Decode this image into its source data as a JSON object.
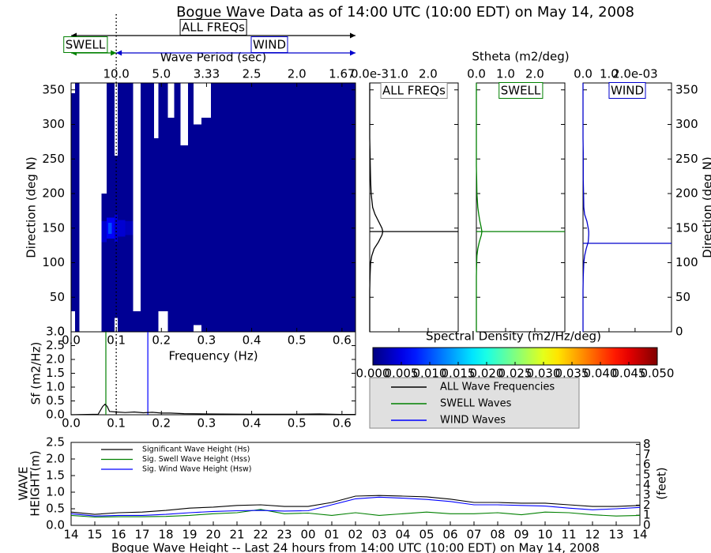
{
  "title": "Bogue Wave Data as of 14:00 UTC (10:00 EDT) on May 14, 2008",
  "chart_data": [
    {
      "type": "heatmap",
      "xlabel": "Frequency (Hz)",
      "ylabel": "Direction (deg N)",
      "top_xlabel": "Wave Period (sec)",
      "xlim": [
        0,
        0.63
      ],
      "ylim": [
        0,
        360
      ],
      "xticks": [
        {
          "value": 0,
          "label": "0.0"
        },
        0.1,
        0.2,
        0.3,
        0.4,
        0.5,
        0.6
      ],
      "yticks": [
        0,
        50,
        100,
        150,
        200,
        250,
        300,
        350
      ],
      "top_xticks": [
        {
          "value": 0.1,
          "label": "10.0"
        },
        {
          "value": 0.2,
          "label": "5.0"
        },
        {
          "value": 0.3,
          "label": "3.33"
        },
        {
          "value": 0.4,
          "label": "2.5"
        },
        {
          "value": 0.5,
          "label": "2.0"
        },
        {
          "value": 0.6,
          "label": "1.67"
        }
      ],
      "split_freq": 0.1,
      "annotations": {
        "all": "ALL FREQs",
        "swell": "SWELL",
        "wind": "WIND"
      },
      "cells": [
        {
          "f": [
            0,
            0.009
          ],
          "d": [
            30,
            345
          ],
          "v": 0.001
        },
        {
          "f": [
            0.009,
            0.018
          ],
          "d": [
            0,
            360
          ],
          "v": 0.001
        },
        {
          "f": [
            0.067,
            0.079
          ],
          "d": [
            0,
            200
          ],
          "v": 0.001
        },
        {
          "f": [
            0.079,
            0.096
          ],
          "d": [
            0,
            360
          ],
          "v": 0.001
        },
        {
          "f": [
            0.096,
            0.103
          ],
          "d": [
            20,
            255
          ],
          "v": 0.001
        },
        {
          "f": [
            0.103,
            0.137
          ],
          "d": [
            0,
            360
          ],
          "v": 0.001
        },
        {
          "f": [
            0.137,
            0.154
          ],
          "d": [
            0,
            30
          ],
          "v": 0.001
        },
        {
          "f": [
            0.154,
            0.184
          ],
          "d": [
            0,
            360
          ],
          "v": 0.001
        },
        {
          "f": [
            0.184,
            0.193
          ],
          "d": [
            0,
            280
          ],
          "v": 0.001
        },
        {
          "f": [
            0.193,
            0.214
          ],
          "d": [
            30,
            360
          ],
          "v": 0.001
        },
        {
          "f": [
            0.214,
            0.228
          ],
          "d": [
            0,
            310
          ],
          "v": 0.001
        },
        {
          "f": [
            0.228,
            0.242
          ],
          "d": [
            0,
            360
          ],
          "v": 0.001
        },
        {
          "f": [
            0.242,
            0.259
          ],
          "d": [
            0,
            270
          ],
          "v": 0.001
        },
        {
          "f": [
            0.259,
            0.271
          ],
          "d": [
            0,
            360
          ],
          "v": 0.001
        },
        {
          "f": [
            0.271,
            0.289
          ],
          "d": [
            10,
            300
          ],
          "v": 0.001
        },
        {
          "f": [
            0.289,
            0.31
          ],
          "d": [
            0,
            310
          ],
          "v": 0.001
        },
        {
          "f": [
            0.31,
            0.63
          ],
          "d": [
            0,
            360
          ],
          "v": 0.001
        },
        {
          "f": [
            0.067,
            0.079
          ],
          "d": [
            130,
            160
          ],
          "v": 0.004
        },
        {
          "f": [
            0.079,
            0.096
          ],
          "d": [
            135,
            165
          ],
          "v": 0.006
        },
        {
          "f": [
            0.082,
            0.09
          ],
          "d": [
            142,
            158
          ],
          "v": 0.01
        },
        {
          "f": [
            0.096,
            0.103
          ],
          "d": [
            130,
            170
          ],
          "v": 0.004
        },
        {
          "f": [
            0.103,
            0.12
          ],
          "d": [
            138,
            162
          ],
          "v": 0.004
        },
        {
          "f": [
            0.12,
            0.137
          ],
          "d": [
            140,
            160
          ],
          "v": 0.003
        }
      ],
      "colorbar": {
        "label": "Spectral Density (m2/Hz/deg)",
        "colormap": "jet",
        "clim": [
          0,
          0.05
        ],
        "ticks": [
          {
            "value": 0,
            "label": "0.000"
          },
          {
            "value": 0.005,
            "label": "0.005"
          },
          {
            "value": 0.01,
            "label": "0.010"
          },
          {
            "value": 0.015,
            "label": "0.015"
          },
          {
            "value": 0.02,
            "label": "0.020"
          },
          {
            "value": 0.025,
            "label": "0.025"
          },
          {
            "value": 0.03,
            "label": "0.030"
          },
          {
            "value": 0.035,
            "label": "0.035"
          },
          {
            "value": 0.04,
            "label": "0.040"
          },
          {
            "value": 0.045,
            "label": "0.045"
          },
          {
            "value": 0.05,
            "label": "0.050"
          }
        ]
      }
    },
    {
      "type": "line",
      "label": "ALL FREQs",
      "color": "#000000",
      "xlim": [
        0,
        3.03
      ],
      "ylim": [
        0,
        360
      ],
      "xticks": [
        {
          "value": 0,
          "label": "0.0e-3"
        },
        {
          "value": 1,
          "label": "1.0"
        },
        {
          "value": 2,
          "label": "2.0"
        }
      ],
      "yticks": [
        0,
        50,
        100,
        150,
        200,
        250,
        300,
        350
      ],
      "directions": [
        0,
        20,
        40,
        60,
        80,
        100,
        110,
        120,
        130,
        140,
        145,
        150,
        160,
        170,
        180,
        200,
        220,
        240,
        260,
        280,
        300,
        320,
        340,
        360
      ],
      "values": [
        0,
        0,
        0,
        0,
        0.01,
        0.03,
        0.07,
        0.15,
        0.3,
        0.42,
        0.45,
        0.42,
        0.3,
        0.18,
        0.1,
        0.05,
        0.03,
        0.02,
        0.01,
        0,
        0,
        0,
        0,
        0
      ],
      "peak_dir": 145
    },
    {
      "type": "line",
      "label": "SWELL",
      "color": "#008000",
      "xlabel": "Stheta (m2/deg)",
      "xlim": [
        0,
        3.03
      ],
      "ylim": [
        0,
        360
      ],
      "xticks": [
        {
          "value": 0,
          "label": "0.0"
        },
        {
          "value": 1,
          "label": "1.0"
        },
        {
          "value": 2,
          "label": "2.0"
        }
      ],
      "yticks": [
        0,
        50,
        100,
        150,
        200,
        250,
        300,
        350
      ],
      "directions": [
        0,
        20,
        40,
        60,
        80,
        100,
        110,
        120,
        130,
        140,
        145,
        150,
        160,
        170,
        180,
        200,
        220,
        240,
        260,
        280,
        300,
        320,
        340,
        360
      ],
      "values": [
        0,
        0,
        0,
        0,
        0,
        0.01,
        0.02,
        0.05,
        0.1,
        0.17,
        0.19,
        0.17,
        0.12,
        0.08,
        0.05,
        0.02,
        0.01,
        0,
        0,
        0,
        0,
        0,
        0,
        0
      ],
      "peak_dir": 145
    },
    {
      "type": "line",
      "label": "WIND",
      "color": "#0000cc",
      "ylabel": "Direction (deg N)",
      "xlim": [
        0,
        3.4
      ],
      "ylim": [
        0,
        360
      ],
      "xticks": [
        {
          "value": 0,
          "label": "0.0"
        },
        {
          "value": 1,
          "label": "1.0"
        },
        {
          "value": 2,
          "label": "2.0e-03"
        }
      ],
      "yticks": [
        0,
        50,
        100,
        150,
        200,
        250,
        300,
        350
      ],
      "directions": [
        0,
        20,
        40,
        60,
        80,
        100,
        110,
        120,
        130,
        140,
        145,
        150,
        160,
        170,
        180,
        200,
        220,
        240,
        260,
        280,
        300,
        320,
        340,
        360
      ],
      "values": [
        0,
        0,
        0,
        0,
        0.01,
        0.03,
        0.06,
        0.12,
        0.2,
        0.22,
        0.22,
        0.2,
        0.15,
        0.06,
        0.03,
        0.02,
        0.01,
        0.01,
        0.01,
        0,
        0,
        0,
        0,
        0
      ],
      "peak_dir": 128
    },
    {
      "type": "line",
      "ylabel": "Sf (m2/Hz)",
      "xlim": [
        0,
        0.63
      ],
      "ylim": [
        0,
        3.0
      ],
      "xticks": [
        {
          "value": 0,
          "label": "0.0"
        },
        0.1,
        0.2,
        0.3,
        0.4,
        0.5,
        0.6
      ],
      "yticks": [
        {
          "value": 0,
          "label": "0.0"
        },
        0.5,
        {
          "value": 1,
          "label": "1.0"
        },
        1.5,
        {
          "value": 2,
          "label": "2.0"
        },
        2.5,
        {
          "value": 3,
          "label": "3.0"
        }
      ],
      "x": [
        0,
        0.06,
        0.07,
        0.075,
        0.08,
        0.085,
        0.1,
        0.12,
        0.14,
        0.16,
        0.18,
        0.2,
        0.22,
        0.25,
        0.3,
        0.4,
        0.5,
        0.55,
        0.6,
        0.63
      ],
      "values": [
        0,
        0.02,
        0.3,
        0.38,
        0.3,
        0.12,
        0.1,
        0.08,
        0.1,
        0.07,
        0.09,
        0.06,
        0.06,
        0.04,
        0.03,
        0.02,
        0.02,
        0.03,
        0.01,
        0.01
      ],
      "swell_peak_freq": 0.077,
      "wind_peak_freq": 0.17,
      "legend": [
        {
          "name": "ALL Wave Frequencies",
          "color": "#000000"
        },
        {
          "name": "SWELL Waves",
          "color": "#008000"
        },
        {
          "name": "WIND Waves",
          "color": "#0000ff"
        }
      ]
    },
    {
      "type": "line",
      "xlabel": "Bogue Wave Height -- Last 24 hours from 14:00 UTC (10:00 EDT) on May 14, 2008",
      "ylabel": [
        "WAVE",
        "HEIGHT(m)"
      ],
      "y2label": "(feet)",
      "categories": [
        "14",
        "15",
        "16",
        "17",
        "18",
        "19",
        "20",
        "21",
        "22",
        "23",
        "00",
        "01",
        "02",
        "03",
        "04",
        "05",
        "06",
        "07",
        "08",
        "09",
        "10",
        "11",
        "12",
        "13",
        "14"
      ],
      "ylim": [
        0,
        2.5
      ],
      "yticks": [
        {
          "value": 0,
          "label": "0.0"
        },
        0.5,
        {
          "value": 1,
          "label": "1.0"
        },
        1.5,
        {
          "value": 2,
          "label": "2.0"
        },
        2.5
      ],
      "y2lim": [
        0,
        8.2021
      ],
      "y2ticks": [
        0,
        1,
        2,
        3,
        4,
        5,
        6,
        7,
        8
      ],
      "series": [
        {
          "name": "Significant Wave Height (Hs)",
          "color": "#000000",
          "values": [
            0.4,
            0.33,
            0.38,
            0.4,
            0.45,
            0.52,
            0.55,
            0.6,
            0.62,
            0.57,
            0.57,
            0.69,
            0.88,
            0.9,
            0.88,
            0.86,
            0.79,
            0.69,
            0.69,
            0.67,
            0.67,
            0.62,
            0.57,
            0.57,
            0.6
          ]
        },
        {
          "name": "Sig. Swell Wave Height (Hss)",
          "color": "#008000",
          "values": [
            0.3,
            0.25,
            0.26,
            0.26,
            0.27,
            0.3,
            0.35,
            0.38,
            0.48,
            0.35,
            0.37,
            0.3,
            0.38,
            0.3,
            0.35,
            0.4,
            0.35,
            0.35,
            0.38,
            0.32,
            0.4,
            0.38,
            0.32,
            0.28,
            0.3
          ]
        },
        {
          "name": "Sig. Wind Wave Height (Hsw)",
          "color": "#0000ff",
          "values": [
            0.35,
            0.28,
            0.3,
            0.3,
            0.33,
            0.38,
            0.42,
            0.44,
            0.45,
            0.43,
            0.44,
            0.62,
            0.8,
            0.85,
            0.82,
            0.78,
            0.72,
            0.62,
            0.62,
            0.6,
            0.58,
            0.52,
            0.47,
            0.5,
            0.54
          ]
        }
      ]
    }
  ]
}
